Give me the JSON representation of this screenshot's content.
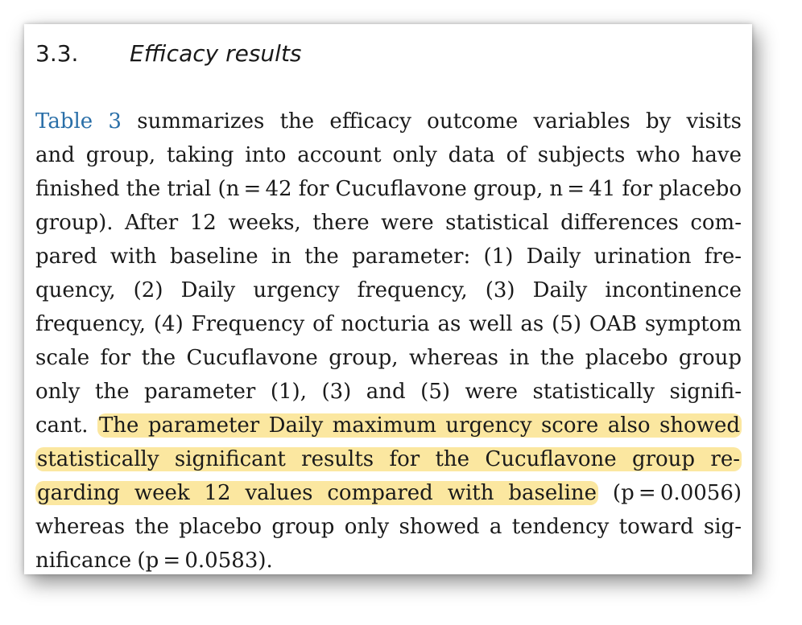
{
  "section": {
    "number": "3.3.",
    "title": "Efficacy results"
  },
  "lines": [
    {
      "pre": "",
      "link": "Table 3",
      "text": " summarizes the efficacy outcome variables by visits",
      "hl": "",
      "post": ""
    },
    {
      "pre": "and group, taking into account only data of subjects who have",
      "link": "",
      "text": "",
      "hl": "",
      "post": ""
    },
    {
      "pre": "finished the trial (n = 42 for Cucuflavone group, n = 41 for placebo",
      "link": "",
      "text": "",
      "hl": "",
      "post": ""
    },
    {
      "pre": "group). After 12 weeks, there were statistical differences com-",
      "link": "",
      "text": "",
      "hl": "",
      "post": ""
    },
    {
      "pre": "pared with baseline in the parameter: (1) Daily urination fre-",
      "link": "",
      "text": "",
      "hl": "",
      "post": ""
    },
    {
      "pre": "quency, (2) Daily urgency frequency, (3) Daily incontinence",
      "link": "",
      "text": "",
      "hl": "",
      "post": ""
    },
    {
      "pre": "frequency, (4) Frequency of nocturia as well as (5) OAB symptom",
      "link": "",
      "text": "",
      "hl": "",
      "post": ""
    },
    {
      "pre": "scale for the Cucuflavone group, whereas in the placebo group",
      "link": "",
      "text": "",
      "hl": "",
      "post": ""
    },
    {
      "pre": "only the parameter (1), (3) and (5) were statistically signifi-",
      "link": "",
      "text": "",
      "hl": "",
      "post": ""
    },
    {
      "pre": "cant.",
      "link": "",
      "text": "",
      "hl": "The parameter Daily maximum urgency score also showed",
      "post": ""
    },
    {
      "pre": "",
      "link": "",
      "text": "",
      "hl": "statistically significant results for the Cucuflavone group re-",
      "post": ""
    },
    {
      "pre": "",
      "link": "",
      "text": "",
      "hl": "garding week 12 values compared with baseline",
      "post": " (p = 0.0056)"
    },
    {
      "pre": "whereas the placebo group only showed a tendency toward sig-",
      "link": "",
      "text": "",
      "hl": "",
      "post": ""
    },
    {
      "pre": "nificance (p = 0.0583).",
      "link": "",
      "text": "",
      "hl": "",
      "post": ""
    }
  ]
}
